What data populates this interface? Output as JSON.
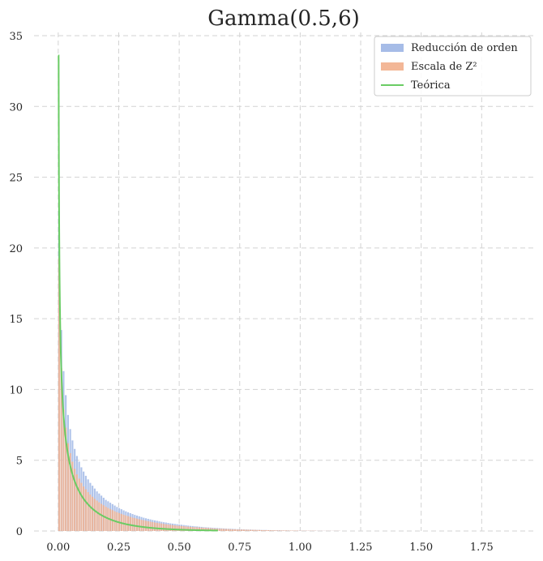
{
  "chart_data": {
    "type": "bar",
    "title": "Gamma(0.5,6)",
    "xlabel": "",
    "ylabel": "",
    "xlim": [
      -0.1,
      1.97
    ],
    "ylim": [
      0,
      35
    ],
    "x_ticks": [
      "0.00",
      "0.25",
      "0.50",
      "0.75",
      "1.00",
      "1.25",
      "1.50",
      "1.75"
    ],
    "x_tick_values": [
      0,
      0.25,
      0.5,
      0.75,
      1.0,
      1.25,
      1.5,
      1.75
    ],
    "y_ticks": [
      "0",
      "5",
      "10",
      "15",
      "20",
      "25",
      "30",
      "35"
    ],
    "y_tick_values": [
      0,
      5,
      10,
      15,
      20,
      25,
      30,
      35
    ],
    "grid": true,
    "legend_position": "top-right",
    "series": [
      {
        "name": "Reducción de orden",
        "kind": "histogram",
        "color": "#a1b8e6",
        "bin_width": 0.0092,
        "values": [
          22.6,
          14.2,
          11.3,
          9.6,
          8.2,
          7.2,
          6.4,
          5.8,
          5.3,
          4.9,
          4.5,
          4.2,
          3.9,
          3.65,
          3.4,
          3.2,
          3.0,
          2.8,
          2.65,
          2.5,
          2.35,
          2.2,
          2.1,
          2.0,
          1.9,
          1.8,
          1.7,
          1.62,
          1.54,
          1.46,
          1.39,
          1.32,
          1.26,
          1.2,
          1.14,
          1.09,
          1.04,
          0.99,
          0.94,
          0.9,
          0.86,
          0.82,
          0.78,
          0.75,
          0.72,
          0.68,
          0.65,
          0.62,
          0.6,
          0.57,
          0.54,
          0.52,
          0.5,
          0.48,
          0.46,
          0.44,
          0.42,
          0.4,
          0.38,
          0.36,
          0.35,
          0.33,
          0.32,
          0.3,
          0.29,
          0.27,
          0.26,
          0.25,
          0.24,
          0.23,
          0.22,
          0.21,
          0.2,
          0.19,
          0.18,
          0.17,
          0.16,
          0.16,
          0.15,
          0.14,
          0.13,
          0.13,
          0.12,
          0.11,
          0.11,
          0.1,
          0.1,
          0.09,
          0.09,
          0.08,
          0.08,
          0.07,
          0.07,
          0.07,
          0.06,
          0.06,
          0.05,
          0.05,
          0.05,
          0.05,
          0.04,
          0.04,
          0.04,
          0.04,
          0.03,
          0.03,
          0.03,
          0.03,
          0.03,
          0.02,
          0.02,
          0.02,
          0.02,
          0.02,
          0.02,
          0.02,
          0.01,
          0.01,
          0.01,
          0.01,
          0.01,
          0.01,
          0.01,
          0.01,
          0.01,
          0.01,
          0.01
        ]
      },
      {
        "name": "Escala de Z²",
        "kind": "histogram",
        "color": "#f2b391",
        "bin_width": 0.0092,
        "values": [
          19.3,
          11.5,
          8.6,
          7.3,
          6.2,
          5.5,
          4.9,
          4.4,
          4.0,
          3.7,
          3.4,
          3.15,
          2.95,
          2.75,
          2.57,
          2.42,
          2.28,
          2.15,
          2.03,
          1.92,
          1.82,
          1.72,
          1.63,
          1.55,
          1.47,
          1.4,
          1.33,
          1.27,
          1.21,
          1.15,
          1.1,
          1.05,
          1.0,
          0.95,
          0.91,
          0.87,
          0.83,
          0.79,
          0.76,
          0.72,
          0.69,
          0.66,
          0.63,
          0.6,
          0.58,
          0.55,
          0.53,
          0.5,
          0.48,
          0.46,
          0.44,
          0.42,
          0.4,
          0.38,
          0.37,
          0.35,
          0.34,
          0.32,
          0.31,
          0.29,
          0.28,
          0.27,
          0.26,
          0.25,
          0.24,
          0.23,
          0.22,
          0.21,
          0.2,
          0.19,
          0.18,
          0.17,
          0.16,
          0.16,
          0.15,
          0.14,
          0.14,
          0.13,
          0.12,
          0.12,
          0.11,
          0.11,
          0.1,
          0.1,
          0.09,
          0.09,
          0.08,
          0.08,
          0.08,
          0.07,
          0.07,
          0.06,
          0.06,
          0.06,
          0.06,
          0.05,
          0.05,
          0.05,
          0.04,
          0.04,
          0.04,
          0.04,
          0.04,
          0.03,
          0.03,
          0.03,
          0.03,
          0.03,
          0.02,
          0.02,
          0.02,
          0.02,
          0.02,
          0.02,
          0.02,
          0.02,
          0.01,
          0.01,
          0.01,
          0.01,
          0.01,
          0.01,
          0.01,
          0.01,
          0.01,
          0.01,
          0.01
        ]
      },
      {
        "name": "Teórica",
        "kind": "line",
        "color": "#6acc64",
        "shape": 0.5,
        "rate": 6,
        "x_range": [
          0.0002,
          0.66
        ]
      }
    ]
  }
}
